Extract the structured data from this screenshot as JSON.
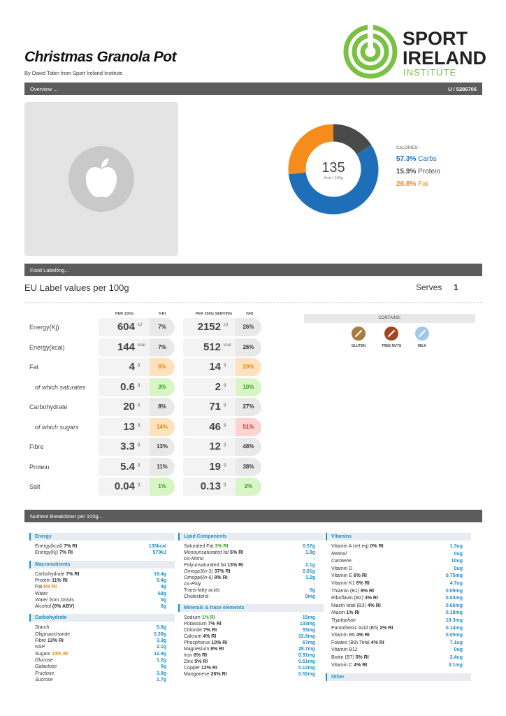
{
  "header": {
    "title": "Christmas Granola Pot",
    "byline": "By David Tobin from Sport Ireland Institute",
    "logo": [
      "SPORT",
      "IRELAND",
      "INSTITUTE"
    ]
  },
  "overview": {
    "label": "Overview ...",
    "user": "U / 5286706"
  },
  "calories": {
    "value": "135",
    "unit": "Kcal / 100g",
    "heading": "CALORIES:",
    "macros": {
      "names": [
        "Carbs",
        "Protein",
        "Fat"
      ],
      "values": [
        57.3,
        15.9,
        26.8
      ],
      "value_labels": [
        "57.3%",
        "15.9%",
        "26.8%"
      ],
      "colors": [
        "#1f6fb8",
        "#4a4a4a",
        "#f58c1b"
      ]
    }
  },
  "labelling": {
    "bar": "Food Labelling...",
    "heading": "EU Label values per 100g",
    "serves_label": "Serves",
    "serves": "1",
    "columns": [
      "PER 100G",
      "%RI",
      "PER 356G SERVING",
      "%RI"
    ],
    "tones": {
      "grey": [
        "#e9e9e9",
        "#333333"
      ],
      "orange": [
        "#fde2bd",
        "#e8850c"
      ],
      "green": [
        "#d8f5c6",
        "#3a9e1e"
      ],
      "red": [
        "#fbd3d3",
        "#d63030"
      ]
    },
    "rows": [
      {
        "name": "Energy(Kj)",
        "per100": "604",
        "unit": "kJ",
        "ri": "7%",
        "ri_tone": "grey",
        "serving": "2152",
        "ri_serving": "26%",
        "ri_serving_tone": "grey",
        "italic": false
      },
      {
        "name": "Energy(kcal)",
        "per100": "144",
        "unit": "kcal",
        "ri": "7%",
        "ri_tone": "grey",
        "serving": "512",
        "ri_serving": "26%",
        "ri_serving_tone": "grey",
        "italic": false
      },
      {
        "name": "Fat",
        "per100": "4",
        "unit": "g",
        "ri": "6%",
        "ri_tone": "orange",
        "serving": "14",
        "ri_serving": "20%",
        "ri_serving_tone": "orange",
        "italic": false
      },
      {
        "name": "of which saturates",
        "per100": "0.6",
        "unit": "g",
        "ri": "3%",
        "ri_tone": "green",
        "serving": "2",
        "ri_serving": "10%",
        "ri_serving_tone": "green",
        "italic": true
      },
      {
        "name": "Carbohydrate",
        "per100": "20",
        "unit": "g",
        "ri": "8%",
        "ri_tone": "grey",
        "serving": "71",
        "ri_serving": "27%",
        "ri_serving_tone": "grey",
        "italic": false
      },
      {
        "name": "of which sugars",
        "per100": "13",
        "unit": "g",
        "ri": "14%",
        "ri_tone": "orange",
        "serving": "46",
        "ri_serving": "51%",
        "ri_serving_tone": "red",
        "italic": true
      },
      {
        "name": "Fibre",
        "per100": "3.3",
        "unit": "g",
        "ri": "13%",
        "ri_tone": "grey",
        "serving": "12",
        "ri_serving": "48%",
        "ri_serving_tone": "grey",
        "italic": false
      },
      {
        "name": "Protein",
        "per100": "5.4",
        "unit": "g",
        "ri": "11%",
        "ri_tone": "grey",
        "serving": "19",
        "ri_serving": "38%",
        "ri_serving_tone": "grey",
        "italic": false
      },
      {
        "name": "Salt",
        "per100": "0.04",
        "unit": "g",
        "ri": "1%",
        "ri_tone": "green",
        "serving": "0.13",
        "ri_serving": "2%",
        "ri_serving_tone": "green",
        "italic": false
      }
    ]
  },
  "contains": {
    "heading": "CONTAINS:",
    "items": [
      {
        "name": "GLUTEN",
        "color": "#a87b3e"
      },
      {
        "name": "TREE NUTS",
        "color": "#a3461f"
      },
      {
        "name": "MILK",
        "color": "#9fc9ec"
      }
    ]
  },
  "breakdown": {
    "bar": "Nutrient Breakdown per 100g...",
    "ri_colors": {
      "green": "#3a9e1e",
      "orange": "#e8850c"
    },
    "columns": [
      [
        {
          "title": "Energy",
          "rows": [
            {
              "label": "Energy(kcal)",
              "ri": "7% RI",
              "value": "135kcal"
            },
            {
              "label": "Energy(Kj)",
              "ri": "7% RI",
              "value": "570kJ"
            }
          ]
        },
        {
          "title": "Macronutrients",
          "rows": [
            {
              "label": "Carbohydrate",
              "ri": "7% RI",
              "value": "19.4g"
            },
            {
              "label": "Protein",
              "ri": "11% RI",
              "value": "5.4g"
            },
            {
              "label": "Fat",
              "ri": "6% RI",
              "ri_tone": "orange",
              "value": "4g"
            },
            {
              "label": "Water",
              "value": "68g"
            },
            {
              "label": "Water from Drinks",
              "italic": true,
              "value": "0g"
            },
            {
              "label": "Alcohol",
              "ri": "(0% ABV)",
              "value": "0g"
            }
          ]
        },
        {
          "title": "Carbohydrate",
          "rows": [
            {
              "label": "Starch",
              "value": "5.8g"
            },
            {
              "label": "Oligosaccharide",
              "value": "0.39g"
            },
            {
              "label": "Fibre",
              "ri": "13% RI",
              "value": "3.3g"
            },
            {
              "label": "NSP",
              "value": "2.1g"
            },
            {
              "label": "Sugars",
              "ri": "14% RI",
              "ri_tone": "orange",
              "value": "12.9g"
            },
            {
              "label": "Glucose",
              "italic": true,
              "value": "1.2g"
            },
            {
              "label": "Galactose",
              "italic": true,
              "value": "0g"
            },
            {
              "label": "Fructose",
              "italic": true,
              "value": "3.9g"
            },
            {
              "label": "Sucrose",
              "italic": true,
              "value": "1.7g"
            }
          ]
        }
      ],
      [
        {
          "title": "Lipid Components",
          "rows": [
            {
              "label": "Saturated Fat",
              "ri": "3% RI",
              "ri_tone": "green",
              "value": "0.57g"
            },
            {
              "label": "Monounsaturated fat",
              "italic": true,
              "ri": "6% RI",
              "value": "1.8g"
            },
            {
              "label": "cis-Mono",
              "italic": true,
              "value": "-"
            },
            {
              "label": "Polyunsaturated fat",
              "ri": "13% RI",
              "value": "2.1g"
            },
            {
              "label": "Omega3(n-3)",
              "italic": true,
              "ri": "37% RI",
              "value": "0.81g"
            },
            {
              "label": "Omega6(n-6)",
              "italic": true,
              "ri": "8% RI",
              "value": "1.2g"
            },
            {
              "label": "cis-Poly",
              "italic": true,
              "value": "-"
            },
            {
              "label": "Trans-fatty acids",
              "value": "0g"
            },
            {
              "label": "Cholesterol",
              "value": "0mg"
            }
          ]
        },
        {
          "title": "Minerals & trace elements",
          "rows": [
            {
              "label": "Sodium",
              "ri": "1% RI",
              "ri_tone": "green",
              "value": "15mg"
            },
            {
              "label": "Potassium",
              "ri": "7% RI",
              "value": "133mg"
            },
            {
              "label": "Chloride",
              "ri": "7% RI",
              "value": "53mg"
            },
            {
              "label": "Calcium",
              "ri": "4% RI",
              "value": "32.8mg"
            },
            {
              "label": "Phosphorus",
              "ri": "10% RI",
              "value": "67mg"
            },
            {
              "label": "Magnesium",
              "ri": "8% RI",
              "value": "28.7mg"
            },
            {
              "label": "Iron",
              "ri": "6% RI",
              "value": "0.91mg"
            },
            {
              "label": "Zinc",
              "ri": "5% RI",
              "value": "0.51mg"
            },
            {
              "label": "Copper",
              "ri": "12% RI",
              "value": "0.12mg"
            },
            {
              "label": "Manganese",
              "ri": "26% RI",
              "value": "0.52mg"
            }
          ]
        }
      ],
      [
        {
          "title": "Vitamins",
          "rows": [
            {
              "label": "Vitamin A (ret eq)",
              "ri": "0% RI",
              "value": "1.3ug"
            },
            {
              "label": "Retinol",
              "italic": true,
              "value": "0ug"
            },
            {
              "label": "Carotene",
              "italic": true,
              "value": "10ug"
            },
            {
              "label": "Vitamin D",
              "value": "0ug"
            },
            {
              "label": "Vitamin E",
              "ri": "6% RI",
              "value": "0.75mg"
            },
            {
              "label": "Vitamin K1",
              "ri": "6% RI",
              "value": "4.7ug"
            },
            {
              "label": "Thiamin (B1)",
              "ri": "8% RI",
              "value": "0.09mg"
            },
            {
              "label": "Riboflavin (B2)",
              "ri": "3% RI",
              "value": "0.04mg"
            },
            {
              "label": "Niacin total (B3)",
              "ri": "4% RI",
              "value": "0.66mg"
            },
            {
              "label": "Niacin",
              "italic": true,
              "ri": "1% RI",
              "value": "0.18mg"
            },
            {
              "label": "Tryptophan",
              "italic": true,
              "value": "18.3mg"
            },
            {
              "label": "Pantothenic Acid (B5)",
              "ri": "2% RI",
              "value": "0.14mg"
            },
            {
              "label": "Vitamin B6",
              "ri": "4% RI",
              "value": "0.05mg"
            },
            {
              "label": "Folates (B9) Total",
              "ri": "4% RI",
              "value": "7.1ug"
            },
            {
              "label": "Vitamin B12",
              "value": "0ug"
            },
            {
              "label": "Biotin (B7)",
              "ri": "5% RI",
              "value": "2.4ug"
            },
            {
              "label": "Vitamin C",
              "ri": "4% RI",
              "value": "3.1mg"
            }
          ]
        },
        {
          "title": "Other"
        }
      ]
    ]
  }
}
